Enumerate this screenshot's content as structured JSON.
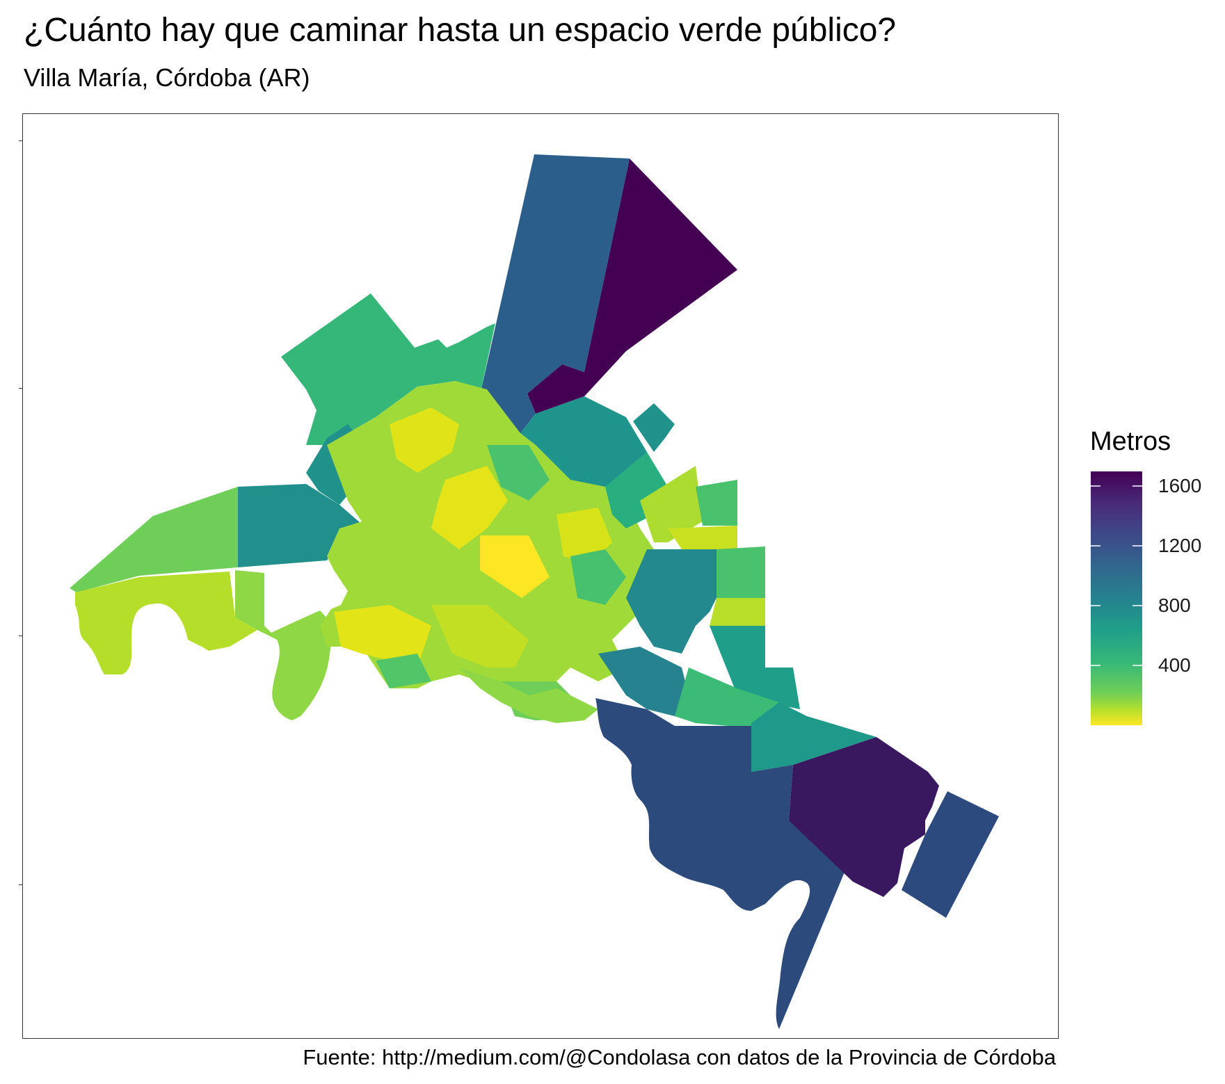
{
  "title": "¿Cuánto hay que caminar hasta un espacio verde público?",
  "subtitle": "Villa María, Córdoba (AR)",
  "caption": "Fuente: http://medium.com/@Condolasa con datos de la Provincia de Córdoba",
  "legend": {
    "title": "Metros",
    "breaks": [
      "1600",
      "1200",
      "800",
      "400"
    ],
    "colormap": "viridis (reversed: low = yellow, high = dark purple)",
    "domain": [
      0,
      1700
    ]
  },
  "chart_data": {
    "type": "choropleth",
    "value_name": "Metros",
    "region_values_m": {
      "north_tract": 1700,
      "north_west_tract": 1150,
      "south_east_large_tract": 1300,
      "east_purple_tract": 1550,
      "far_east_tract": 1300,
      "center_core": 60,
      "west_suburbs": 300,
      "north_west_green": 550
    },
    "colors": {
      "min": "#fde725",
      "q1": "#bade28",
      "q2": "#5ec962",
      "q3": "#21918c",
      "q4": "#3b528b",
      "max": "#440154"
    },
    "grid": false
  }
}
